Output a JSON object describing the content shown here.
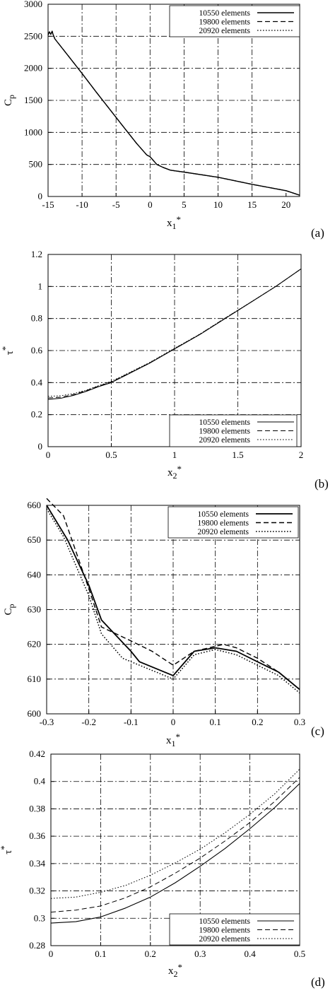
{
  "panels": [
    {
      "tag": "(a)",
      "chart_data": {
        "type": "line",
        "xlabel": "x₁*",
        "ylabel": "Cₚ",
        "xlim": [
          -15,
          22
        ],
        "ylim": [
          0,
          3000
        ],
        "xticks": [
          -15,
          -10,
          -5,
          0,
          5,
          10,
          15,
          20
        ],
        "yticks": [
          0,
          500,
          1000,
          1500,
          2000,
          2500,
          3000
        ],
        "ytick_labels": [
          "0",
          "500",
          "1000",
          "1500",
          "2000",
          "2500",
          "3000"
        ],
        "xtick_labels": [
          "-15",
          "-10",
          "-5",
          "0",
          "5",
          "10",
          "15",
          "20"
        ],
        "grid": true,
        "legend_position": "top-right",
        "series": [
          {
            "name": "10550 elements",
            "dash": "solid",
            "width": 1.4,
            "x": [
              -15,
              -14.8,
              -14.6,
              -14.4,
              -14.3,
              -14,
              -12,
              -10,
              -8,
              -6,
              -4,
              -2,
              -0.5,
              0,
              0.5,
              1,
              2,
              3,
              5,
              10,
              15,
              20,
              22
            ],
            "y": [
              2520,
              2570,
              2530,
              2580,
              2540,
              2460,
              2190,
              1920,
              1640,
              1370,
              1100,
              830,
              650,
              620,
              560,
              500,
              450,
              410,
              380,
              300,
              190,
              90,
              20
            ]
          },
          {
            "name": "19800 elements",
            "dash": "dashed",
            "width": 1.2,
            "x": [
              -15,
              -14.8,
              -14.6,
              -14.4,
              -14.3,
              -14,
              -12,
              -10,
              -8,
              -6,
              -4,
              -2,
              -0.5,
              0,
              0.5,
              1,
              2,
              3,
              5,
              10,
              15,
              20,
              22
            ],
            "y": [
              2520,
              2570,
              2530,
              2580,
              2540,
              2460,
              2190,
              1920,
              1640,
              1370,
              1100,
              830,
              650,
              620,
              560,
              500,
              450,
              410,
              380,
              300,
              190,
              90,
              20
            ]
          },
          {
            "name": "20920 elements",
            "dash": "dotted",
            "width": 1.2,
            "x": [
              -15,
              -14.8,
              -14.6,
              -14.4,
              -14.3,
              -14,
              -12,
              -10,
              -8,
              -6,
              -4,
              -2,
              -0.5,
              0,
              0.5,
              1,
              2,
              3,
              5,
              10,
              15,
              20,
              22
            ],
            "y": [
              2520,
              2570,
              2530,
              2580,
              2540,
              2460,
              2190,
              1920,
              1640,
              1370,
              1100,
              830,
              650,
              620,
              560,
              500,
              450,
              410,
              380,
              300,
              190,
              90,
              20
            ]
          }
        ]
      }
    },
    {
      "tag": "(b)",
      "chart_data": {
        "type": "line",
        "xlabel": "x₂*",
        "ylabel": "τ*",
        "xlim": [
          0,
          2
        ],
        "ylim": [
          0,
          1.2
        ],
        "xticks": [
          0,
          0.5,
          1,
          1.5,
          2
        ],
        "xtick_labels": [
          "0",
          "0.5",
          "1",
          "1.5",
          "2"
        ],
        "yticks": [
          0,
          0.2,
          0.4,
          0.6,
          0.8,
          1,
          1.2
        ],
        "ytick_labels": [
          "0",
          "0.2",
          "0.4",
          "0.6",
          "0.8",
          "1",
          "1.2"
        ],
        "grid": true,
        "legend_position": "bottom-right",
        "series": [
          {
            "name": "10550 elements",
            "dash": "solid",
            "width": 1.1,
            "x": [
              0,
              0.1,
              0.2,
              0.3,
              0.4,
              0.5,
              0.6,
              0.8,
              1.0,
              1.2,
              1.4,
              1.6,
              1.8,
              2.0
            ],
            "y": [
              0.295,
              0.302,
              0.32,
              0.345,
              0.375,
              0.4,
              0.44,
              0.52,
              0.61,
              0.7,
              0.8,
              0.9,
              1.0,
              1.11
            ]
          },
          {
            "name": "19800 elements",
            "dash": "dashed",
            "width": 1.0,
            "x": [
              0,
              0.1,
              0.2,
              0.3,
              0.4,
              0.5,
              0.6,
              0.8,
              1.0,
              1.2,
              1.4,
              1.6,
              1.8,
              2.0
            ],
            "y": [
              0.304,
              0.309,
              0.325,
              0.35,
              0.378,
              0.404,
              0.443,
              0.522,
              0.612,
              0.702,
              0.802,
              0.9,
              1.0,
              1.11
            ]
          },
          {
            "name": "20920 elements",
            "dash": "dotted",
            "width": 1.0,
            "x": [
              0,
              0.1,
              0.2,
              0.3,
              0.4,
              0.5,
              0.6,
              0.8,
              1.0,
              1.2,
              1.4,
              1.6,
              1.8,
              2.0
            ],
            "y": [
              0.314,
              0.318,
              0.331,
              0.352,
              0.381,
              0.408,
              0.446,
              0.524,
              0.614,
              0.703,
              0.803,
              0.901,
              1.0,
              1.11
            ]
          }
        ]
      }
    },
    {
      "tag": "(c)",
      "chart_data": {
        "type": "line",
        "xlabel": "x₁*",
        "ylabel": "Cₚ",
        "xlim": [
          -0.3,
          0.3
        ],
        "ylim": [
          600,
          660
        ],
        "xticks": [
          -0.3,
          -0.2,
          -0.1,
          0,
          0.1,
          0.2,
          0.3
        ],
        "xtick_labels": [
          "-0.3",
          "-0.2",
          "-0.1",
          "0",
          "0.1",
          "0.2",
          "0.3"
        ],
        "yticks": [
          600,
          610,
          620,
          630,
          640,
          650,
          660
        ],
        "ytick_labels": [
          "600",
          "610",
          "620",
          "630",
          "640",
          "650",
          "660"
        ],
        "grid": true,
        "legend_position": "top-right",
        "series": [
          {
            "name": "10550 elements",
            "dash": "solid",
            "width": 1.8,
            "x": [
              -0.3,
              -0.25,
              -0.2,
              -0.17,
              -0.1,
              -0.08,
              0,
              0.05,
              0.1,
              0.15,
              0.2,
              0.25,
              0.3
            ],
            "y": [
              660,
              650,
              637,
              627,
              618,
              615,
              611,
              618,
              619,
              618,
              615,
              612,
              607
            ]
          },
          {
            "name": "19800 elements",
            "dash": "dashed",
            "width": 1.4,
            "x": [
              -0.3,
              -0.26,
              -0.2,
              -0.17,
              -0.1,
              -0.05,
              0,
              0.05,
              0.12,
              0.15,
              0.2,
              0.25,
              0.3
            ],
            "y": [
              662,
              657,
              636,
              625,
              621,
              618,
              614,
              618,
              620,
              619,
              616,
              612,
              607
            ]
          },
          {
            "name": "20920 elements",
            "dash": "dotted",
            "width": 1.5,
            "x": [
              -0.3,
              -0.26,
              -0.2,
              -0.17,
              -0.12,
              -0.08,
              0,
              0.05,
              0.1,
              0.15,
              0.2,
              0.25,
              0.3
            ],
            "y": [
              659,
              651,
              634,
              623,
              616,
              614,
              610,
              617,
              618.5,
              617,
              614,
              611,
              606
            ]
          }
        ]
      }
    },
    {
      "tag": "(d)",
      "chart_data": {
        "type": "line",
        "xlabel": "x₂*",
        "ylabel": "τ*",
        "xlim": [
          0,
          0.5
        ],
        "ylim": [
          0.28,
          0.42
        ],
        "xticks": [
          0,
          0.1,
          0.2,
          0.3,
          0.4,
          0.5
        ],
        "xtick_labels": [
          "0",
          "0.1",
          "0.2",
          "0.3",
          "0.4",
          "0.5"
        ],
        "yticks": [
          0.28,
          0.3,
          0.32,
          0.34,
          0.36,
          0.38,
          0.4,
          0.42
        ],
        "ytick_labels": [
          "0.28",
          "0.3",
          "0.32",
          "0.34",
          "0.36",
          "0.38",
          "0.4",
          "0.42"
        ],
        "grid": true,
        "legend_position": "bottom-right",
        "series": [
          {
            "name": "10550 elements",
            "dash": "solid",
            "width": 1.1,
            "x": [
              0,
              0.05,
              0.1,
              0.15,
              0.2,
              0.25,
              0.3,
              0.35,
              0.4,
              0.45,
              0.5
            ],
            "y": [
              0.2965,
              0.2975,
              0.301,
              0.3075,
              0.3155,
              0.326,
              0.338,
              0.351,
              0.3655,
              0.381,
              0.3985
            ]
          },
          {
            "name": "19800 elements",
            "dash": "dashed",
            "width": 1.0,
            "x": [
              0,
              0.05,
              0.1,
              0.15,
              0.2,
              0.25,
              0.3,
              0.35,
              0.4,
              0.45,
              0.5
            ],
            "y": [
              0.3045,
              0.306,
              0.309,
              0.315,
              0.323,
              0.333,
              0.344,
              0.3565,
              0.37,
              0.3855,
              0.403
            ]
          },
          {
            "name": "20920 elements",
            "dash": "dotted",
            "width": 1.0,
            "x": [
              0,
              0.05,
              0.1,
              0.15,
              0.2,
              0.25,
              0.3,
              0.35,
              0.4,
              0.45,
              0.5
            ],
            "y": [
              0.3145,
              0.3155,
              0.319,
              0.324,
              0.3315,
              0.3405,
              0.3505,
              0.3625,
              0.376,
              0.391,
              0.409
            ]
          }
        ]
      }
    }
  ]
}
